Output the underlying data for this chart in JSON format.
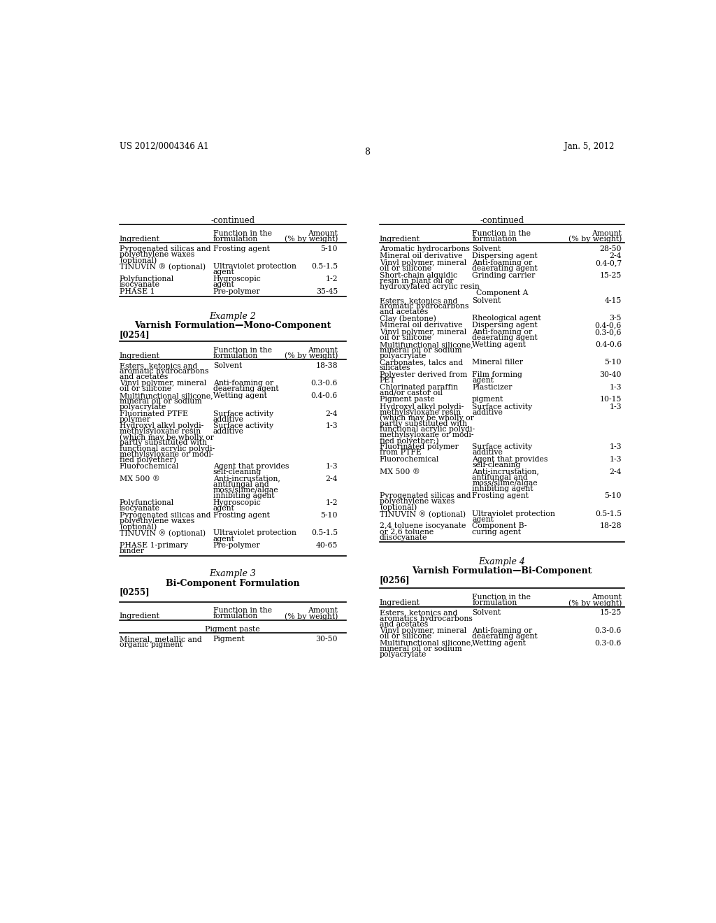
{
  "header_left": "US 2012/0004346 A1",
  "header_right": "Jan. 5, 2012",
  "page_number": "8",
  "background_color": "#ffffff",
  "left_continued_rows": [
    [
      "Pyrogenated silicas and\npolyethylene waxes\n(optional)",
      "Frosting agent",
      "5-10"
    ],
    [
      "TINUVIN ® (optional)",
      "Ultraviolet protection\nagent",
      "0.5-1.5"
    ],
    [
      "Polyfunctional\nisocyanate",
      "Hygroscopic\nagent",
      "1-2"
    ],
    [
      "PHASE 1",
      "Pre-polymer",
      "35-45"
    ]
  ],
  "example2_rows": [
    [
      "Esters, ketonics and\naromatic hydrocarbons\nand acetates",
      "Solvent",
      "18-38"
    ],
    [
      "Vinyl polymer, mineral\noil or silicone",
      "Anti-foaming or\ndeaerating agent",
      "0.3-0.6"
    ],
    [
      "Multifunctional silicone,\nmineral oil or sodium\npolyacrylate",
      "Wetting agent",
      "0.4-0.6"
    ],
    [
      "Fluorinated PTFE\npolymer",
      "Surface activity\nadditive",
      "2-4"
    ],
    [
      "Hydroxyl alkyl polydi-\nmethylsyloxane resin\n(which may be wholly or\npartly substituted with\nfunctional acrylic polydi-\nmethylsyloxane or modi-\nfied polyether)",
      "Surface activity\nadditive",
      "1-3"
    ],
    [
      "Fluorochemical",
      "Agent that provides\nself-cleaning",
      "1-3"
    ],
    [
      "MX 500 ®",
      "Anti-incrustation,\nantifungal and\nmoss/slime/algae\ninhibiting agent",
      "2-4"
    ],
    [
      "Polyfunctional\nisocyanate",
      "Hygroscopic\nagent",
      "1-2"
    ],
    [
      "Pyrogenated silicas and\npolyethylene waxes\n(optional)",
      "Frosting agent",
      "5-10"
    ],
    [
      "TINUVIN ® (optional)",
      "Ultraviolet protection\nagent",
      "0.5-1.5"
    ],
    [
      "PHASE 1-primary\nbinder",
      "Pre-polymer",
      "40-65"
    ]
  ],
  "example3_rows": [
    [
      "Mineral, metallic and\norganic pigment",
      "Pigment",
      "30-50"
    ]
  ],
  "right_continued_rows": [
    [
      "Aromatic hydrocarbons",
      "Solvent",
      "28-50",
      13
    ],
    [
      "Mineral oil derivative",
      "Dispersing agent",
      "2-4",
      13
    ],
    [
      "Vinyl polymer, mineral\noil or silicone",
      "Anti-foaming or\ndeaerating agent",
      "0.4-0,7",
      23
    ],
    [
      "Short-chain alquidic\nresin in plant oil or\nhydroxylated acrylic resin",
      "Grinding carrier",
      "15-25",
      33
    ],
    [
      "__COMPONENT_A__",
      "",
      "",
      14
    ],
    [
      "Esters, ketonics and\naromatic hydrocarbons\nand acetates",
      "Solvent",
      "4-15",
      33
    ],
    [
      "Clay (bentone)",
      "Rheological agent",
      "3-5",
      13
    ],
    [
      "Mineral oil derivative",
      "Dispersing agent",
      "0.4-0,6",
      13
    ],
    [
      "Vinyl polymer, mineral\noil or silicone",
      "Anti-foaming or\ndeaerating agent",
      "0.3-0,6",
      23
    ],
    [
      "Multifunctional silicone,\nmineral oil or sodium\npolyacrylate",
      "Wetting agent",
      "0.4-0.6",
      33
    ],
    [
      "Carbonates, talcs and\nsilicates",
      "Mineral filler",
      "5-10",
      23
    ],
    [
      "Polyester derived from\nPET",
      "Film forming\nagent",
      "30-40",
      23
    ],
    [
      "Chlorinated paraffin\nand/or castor oil",
      "Plasticizer",
      "1-3",
      23
    ],
    [
      "Pigment paste",
      "pigment",
      "10-15",
      13
    ],
    [
      "Hydroxyl alkyl polydi-\nmethylsyloxane resin\n(which may be wholly or\npartly substituted with\nfunctional acrylic polydi-\nmethylsyloxane or modi-\nfied polyether;)",
      "Surface activity\nadditive",
      "1-3",
      75
    ],
    [
      "Fluorinated polymer\nfrom PTFE",
      "Surface activity\nadditive",
      "1-3",
      23
    ],
    [
      "Fluorochemical",
      "Agent that provides\nself-cleaning",
      "1-3",
      23
    ],
    [
      "MX 500 ®",
      "Anti-incrustation,\nantifungal and\nmoss/slime/algae\ninhibiting agent",
      "2-4",
      45
    ],
    [
      "Pyrogenated silicas and\npolyethylene waxes\n(optional)",
      "Frosting agent",
      "5-10",
      33
    ],
    [
      "TINUVIN ® (optional)",
      "Ultraviolet protection\nagent",
      "0.5-1.5",
      23
    ],
    [
      "2,4 toluene isocyanate\nor 2,6 toluene\ndiisocyanate",
      "Component B-\ncuring agent",
      "18-28",
      33
    ]
  ],
  "example4_rows": [
    [
      "Esters, ketonics and\naromatics hydrocarbons\nand acetates",
      "Solvent",
      "15-25"
    ],
    [
      "Vinyl polymer, mineral\noil or silicone",
      "Anti-foaming or\ndeaerating agent",
      "0.3-0.6"
    ],
    [
      "Multifunctional silicone,\nmineral oil or sodium\npolyacrylate",
      "Wetting agent",
      "0.3-0.6"
    ]
  ]
}
